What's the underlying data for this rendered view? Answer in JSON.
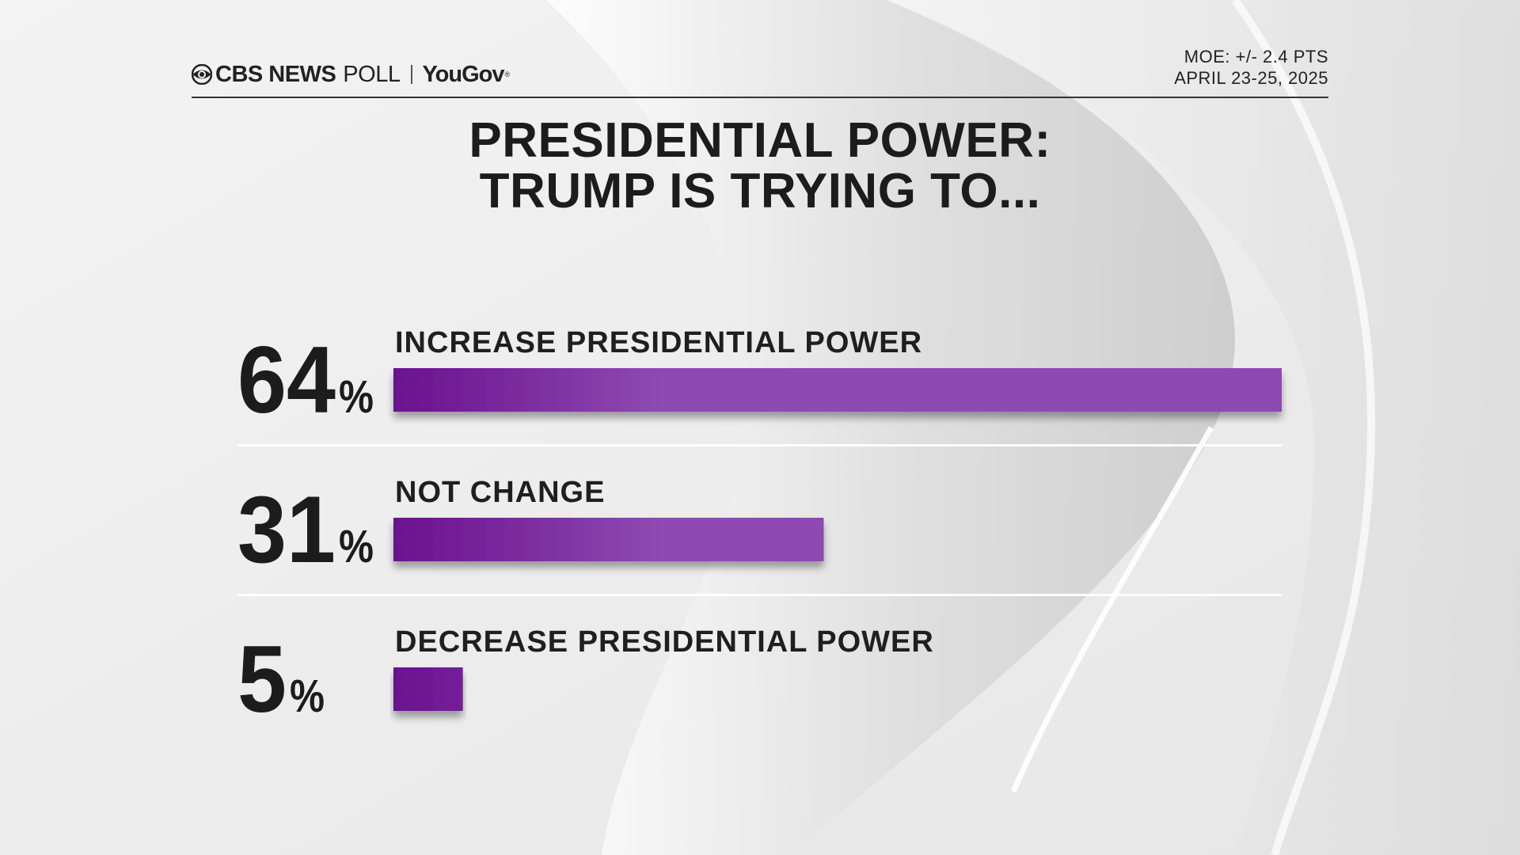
{
  "header": {
    "brand_primary": "CBS NEWS",
    "brand_secondary": "POLL",
    "brand_partner": "YouGov",
    "brand_partner_mark": "®",
    "moe": "MOE: +/- 2.4 PTS",
    "dates": "APRIL 23-25, 2025"
  },
  "title": {
    "line1": "PRESIDENTIAL POWER:",
    "line2": "TRUMP IS TRYING TO..."
  },
  "colors": {
    "bar_start": "#6a118f",
    "bar_end": "#8f4ab2",
    "text": "#1c1c1c",
    "divider": "#ffffff"
  },
  "chart_data": {
    "type": "bar",
    "orientation": "horizontal",
    "title": "PRESIDENTIAL POWER: TRUMP IS TRYING TO...",
    "categories": [
      "INCREASE PRESIDENTIAL POWER",
      "NOT CHANGE",
      "DECREASE PRESIDENTIAL POWER"
    ],
    "values": [
      64,
      31,
      5
    ],
    "value_labels": [
      "64",
      "31",
      "5"
    ],
    "unit": "%",
    "xlim": [
      0,
      64
    ],
    "grid": false
  }
}
